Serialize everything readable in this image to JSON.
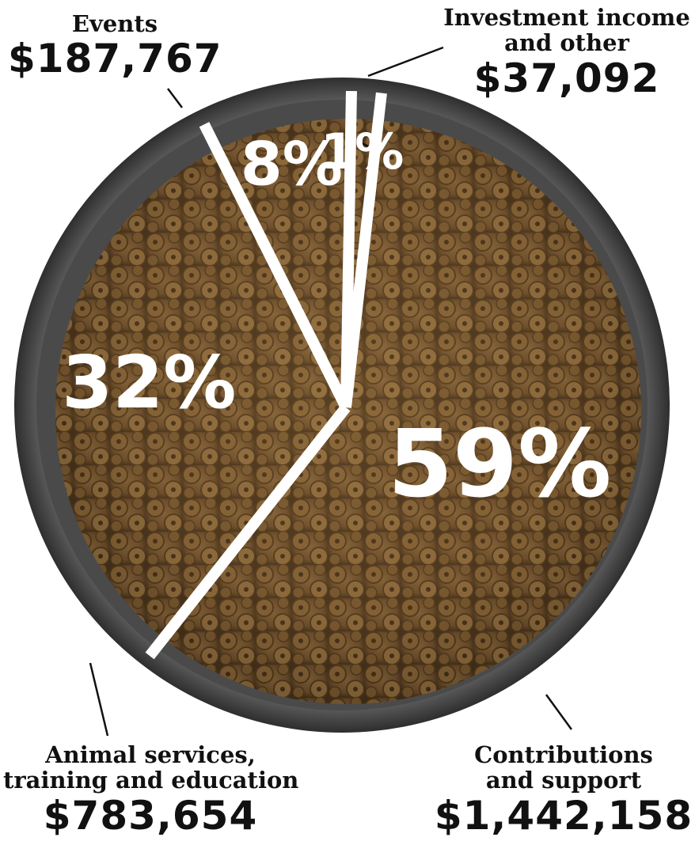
{
  "chart_data": {
    "type": "pie",
    "title": "",
    "slices": [
      {
        "label": "Contributions and support",
        "label_lines": [
          "Contributions",
          "and support"
        ],
        "amount": "$1,442,158",
        "value": 1442158,
        "percent_label": "59%",
        "percent": 59
      },
      {
        "label": "Animal services, training and education",
        "label_lines": [
          "Animal services,",
          "training and education"
        ],
        "amount": "$783,654",
        "value": 783654,
        "percent_label": "32%",
        "percent": 32
      },
      {
        "label": "Events",
        "label_lines": [
          "Events"
        ],
        "amount": "$187,767",
        "value": 187767,
        "percent_label": "8%",
        "percent": 8
      },
      {
        "label": "Investment income and other",
        "label_lines": [
          "Investment income",
          "and other"
        ],
        "amount": "$37,092",
        "value": 37092,
        "percent_label": "1%",
        "percent": 1
      }
    ],
    "colors": {
      "food": "#7a5a34",
      "bowl_rim": "#b9b9b9",
      "percent_text": "#ffffff",
      "label_text": "#111111"
    }
  }
}
